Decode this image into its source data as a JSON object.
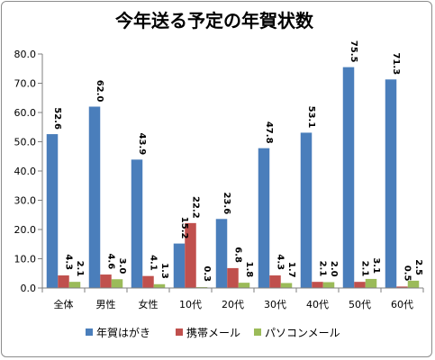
{
  "chart_data": {
    "type": "bar",
    "title": "今年送る予定の年賀状数",
    "categories": [
      "全体",
      "男性",
      "女性",
      "10代",
      "20代",
      "30代",
      "40代",
      "50代",
      "60代"
    ],
    "series": [
      {
        "name": "年賀はがき",
        "color": "#4a7ebb",
        "values": [
          52.6,
          62.0,
          43.9,
          15.2,
          23.6,
          47.8,
          53.1,
          75.5,
          71.3
        ]
      },
      {
        "name": "携帯メール",
        "color": "#c0504d",
        "values": [
          4.3,
          4.6,
          4.1,
          22.2,
          6.8,
          4.3,
          2.1,
          2.1,
          0.5
        ]
      },
      {
        "name": "パソコンメール",
        "color": "#9bbb59",
        "values": [
          2.1,
          3.0,
          1.3,
          0.3,
          1.8,
          1.7,
          2.0,
          3.1,
          2.5
        ]
      }
    ],
    "data_labels": [
      [
        "52.6",
        "62.0",
        "43.9",
        "15.2",
        "23.6",
        "47.8",
        "53.1",
        "75.5",
        "71.3"
      ],
      [
        "4.3",
        "4.6",
        "4.1",
        "22.2",
        "6.8",
        "4.3",
        "2.1",
        "2.1",
        "0.5"
      ],
      [
        "2.1",
        "3.0",
        "1.3",
        "0.3",
        "1.8",
        "1.7",
        "2.0",
        "3.1",
        "2.5"
      ]
    ],
    "ylim": [
      0,
      80
    ],
    "yticks": [
      0,
      10,
      20,
      30,
      40,
      50,
      60,
      70,
      80
    ],
    "ytick_labels": [
      "0.0",
      "10.0",
      "20.0",
      "30.0",
      "40.0",
      "50.0",
      "60.0",
      "70.0",
      "80.0"
    ],
    "grid": false,
    "legend_position": "bottom"
  }
}
